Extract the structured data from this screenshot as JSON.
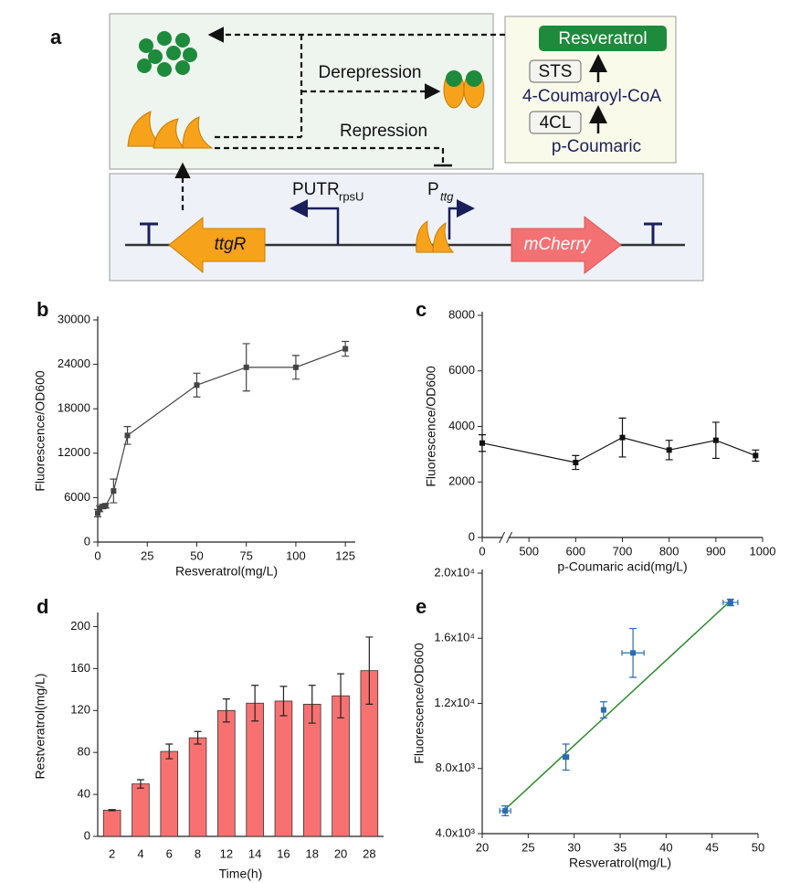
{
  "diagram": {
    "panel_label": "a",
    "derepression": "Derepression",
    "repression": "Repression",
    "pathway": {
      "product": "Resveratrol",
      "enzyme2": "STS",
      "intermediate": "4-Coumaroyl-CoA",
      "enzyme1": "4CL",
      "substrate": "p-Coumaric"
    },
    "promoters": [
      {
        "label": "PUTR",
        "subscript": "rpsU"
      },
      {
        "label": "P",
        "subscript": "ttg"
      }
    ],
    "genes": [
      "ttgR",
      "mCherry"
    ]
  },
  "chart_data": [
    {
      "type": "line",
      "panel_label": "b",
      "xlabel": "Resveratrol(mg/L)",
      "ylabel": "Fluorescence/OD600",
      "color": "#444444",
      "x": [
        0,
        1,
        2.5,
        4,
        8,
        15,
        50,
        75,
        100,
        125
      ],
      "values": [
        3900,
        4500,
        4800,
        4900,
        6900,
        14400,
        21200,
        23600,
        23600,
        26100
      ],
      "errors": [
        500,
        400,
        300,
        300,
        1600,
        1200,
        1600,
        3200,
        1600,
        1000
      ],
      "xlim": [
        0,
        130
      ],
      "xticks": [
        0,
        25,
        50,
        75,
        100,
        125
      ],
      "ylim": [
        0,
        30000
      ],
      "yticks": [
        0,
        6000,
        12000,
        18000,
        24000,
        30000
      ]
    },
    {
      "type": "line",
      "panel_label": "c",
      "xlabel": "p-Coumaric acid(mg/L)",
      "ylabel": "Fluorescence/OD600",
      "color": "#111111",
      "broken_axis": true,
      "x": [
        0,
        600,
        700,
        800,
        900,
        985
      ],
      "values": [
        3400,
        2700,
        3600,
        3150,
        3500,
        2950
      ],
      "errors": [
        300,
        250,
        700,
        350,
        650,
        200
      ],
      "xlim": [
        0,
        1000
      ],
      "xticks": [
        0,
        500,
        600,
        700,
        800,
        900,
        1000
      ],
      "ylim": [
        0,
        8000
      ],
      "yticks": [
        0,
        2000,
        4000,
        6000,
        8000
      ]
    },
    {
      "type": "bar",
      "panel_label": "d",
      "xlabel": "Time(h)",
      "ylabel": "Restveratrol(mg/L)",
      "color": "#f87171",
      "categories": [
        "2",
        "4",
        "6",
        "8",
        "12",
        "14",
        "16",
        "18",
        "20",
        "28"
      ],
      "values": [
        25,
        50,
        81,
        94,
        120,
        127,
        129,
        126,
        134,
        158
      ],
      "errors": [
        0.5,
        4,
        7,
        6,
        11,
        17,
        14,
        18,
        21,
        32
      ],
      "ylim": [
        0,
        210
      ],
      "yticks": [
        0,
        40,
        80,
        120,
        160,
        200
      ]
    },
    {
      "type": "scatter",
      "panel_label": "e",
      "xlabel": "Resveratrol(mg/L)",
      "ylabel": "Fluorescence/OD600",
      "color": "#2b6cb0",
      "x": [
        22.5,
        29.1,
        33.2,
        36.4,
        47
      ],
      "x_errors": [
        0.6,
        0.3,
        0.2,
        1.2,
        0.8
      ],
      "values": [
        5400,
        8700,
        11600,
        15100,
        18200
      ],
      "errors": [
        300,
        800,
        500,
        1500,
        200
      ],
      "fit_line": {
        "x": [
          22.5,
          47
        ],
        "y": [
          5500,
          18300
        ],
        "color": "#2e8b2e"
      },
      "xlim": [
        20,
        50
      ],
      "xticks": [
        20,
        25,
        30,
        35,
        40,
        45,
        50
      ],
      "ylim": [
        4000,
        20000
      ],
      "yticks": [
        {
          "value": 4000,
          "label": "4.0x10³"
        },
        {
          "value": 8000,
          "label": "8.0x10³"
        },
        {
          "value": 12000,
          "label": "1.2x10⁴"
        },
        {
          "value": 16000,
          "label": "1.6x10⁴"
        },
        {
          "value": 20000,
          "label": "2.0x10⁴"
        }
      ]
    }
  ]
}
